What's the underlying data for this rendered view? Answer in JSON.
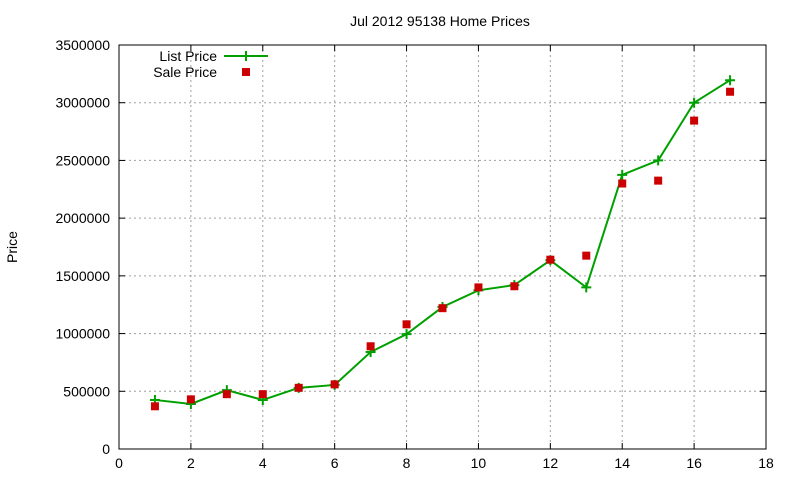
{
  "chart_data": {
    "type": "line",
    "title": "Jul 2012 95138 Home Prices",
    "xlabel": "",
    "ylabel": "Price",
    "xlim": [
      0,
      18
    ],
    "ylim": [
      0,
      3500000
    ],
    "xticks": [
      0,
      2,
      4,
      6,
      8,
      10,
      12,
      14,
      16,
      18
    ],
    "yticks": [
      0,
      500000,
      1000000,
      1500000,
      2000000,
      2500000,
      3000000,
      3500000
    ],
    "grid": true,
    "legend_position": "top-left",
    "x": [
      1,
      2,
      3,
      4,
      5,
      6,
      7,
      8,
      9,
      10,
      11,
      12,
      13,
      14,
      15,
      16,
      17
    ],
    "series": [
      {
        "name": "List Price",
        "style": "line+cross",
        "color": "#00a000",
        "values": [
          425000,
          390000,
          510000,
          425000,
          530000,
          555000,
          840000,
          995000,
          1230000,
          1375000,
          1420000,
          1635000,
          1400000,
          2375000,
          2500000,
          3000000,
          3195000
        ]
      },
      {
        "name": "Sale Price",
        "style": "square-points",
        "color": "#cc0000",
        "values": [
          370000,
          430000,
          475000,
          475000,
          530000,
          560000,
          890000,
          1080000,
          1220000,
          1400000,
          1410000,
          1640000,
          1675000,
          2300000,
          2325000,
          2845000,
          3095000
        ]
      }
    ]
  }
}
